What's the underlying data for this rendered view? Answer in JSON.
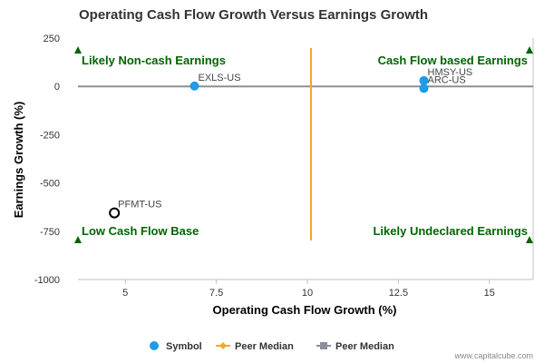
{
  "chart_data": {
    "type": "scatter",
    "title": "Operating Cash Flow Growth Versus Earnings Growth",
    "xlabel": "Operating Cash Flow Growth (%)",
    "ylabel": "Earnings Growth (%)",
    "xlim": [
      3.7,
      16.2
    ],
    "ylim": [
      -1000,
      250
    ],
    "x_ticks": [
      5,
      7.5,
      10,
      12.5,
      15
    ],
    "x_tick_labels": [
      "5",
      "7.5",
      "10",
      "12.5",
      "15"
    ],
    "y_ticks": [
      250,
      0,
      -250,
      -500,
      -750,
      -1000
    ],
    "y_tick_labels": [
      "250",
      "0",
      "-250",
      "-500",
      "-750",
      "-1000"
    ],
    "grid": false,
    "points": [
      {
        "label": "EXLS-US",
        "x": 6.9,
        "y": 2,
        "style": "filled"
      },
      {
        "label": "HMSY-US",
        "x": 13.2,
        "y": 30,
        "style": "filled"
      },
      {
        "label": "ARC-US",
        "x": 13.2,
        "y": -10,
        "style": "filled"
      },
      {
        "label": "PFMT-US",
        "x": 4.7,
        "y": -655,
        "style": "open"
      }
    ],
    "peer_median_x": 10.1,
    "peer_median_y": 0,
    "quadrant_labels": {
      "top_left": "Likely Non-cash Earnings",
      "top_right": "Cash Flow based Earnings",
      "bottom_left": "Low Cash Flow Base",
      "bottom_right": "Likely Undeclared Earnings"
    },
    "legend": [
      {
        "label": "Symbol",
        "marker": "circle",
        "color": "#1f9be8"
      },
      {
        "label": "Peer Median",
        "marker": "diamond-line",
        "color": "#f5a623"
      },
      {
        "label": "Peer Median",
        "marker": "square-line",
        "color": "#8a8f99"
      }
    ],
    "legend_position": "bottom-center",
    "colors": {
      "point": "#1f9be8",
      "vertical_median": "#f5a623",
      "horizontal_median": "#8a8f99",
      "quadrant_text": "#006400"
    }
  },
  "watermark": "www.capitalcube.com"
}
